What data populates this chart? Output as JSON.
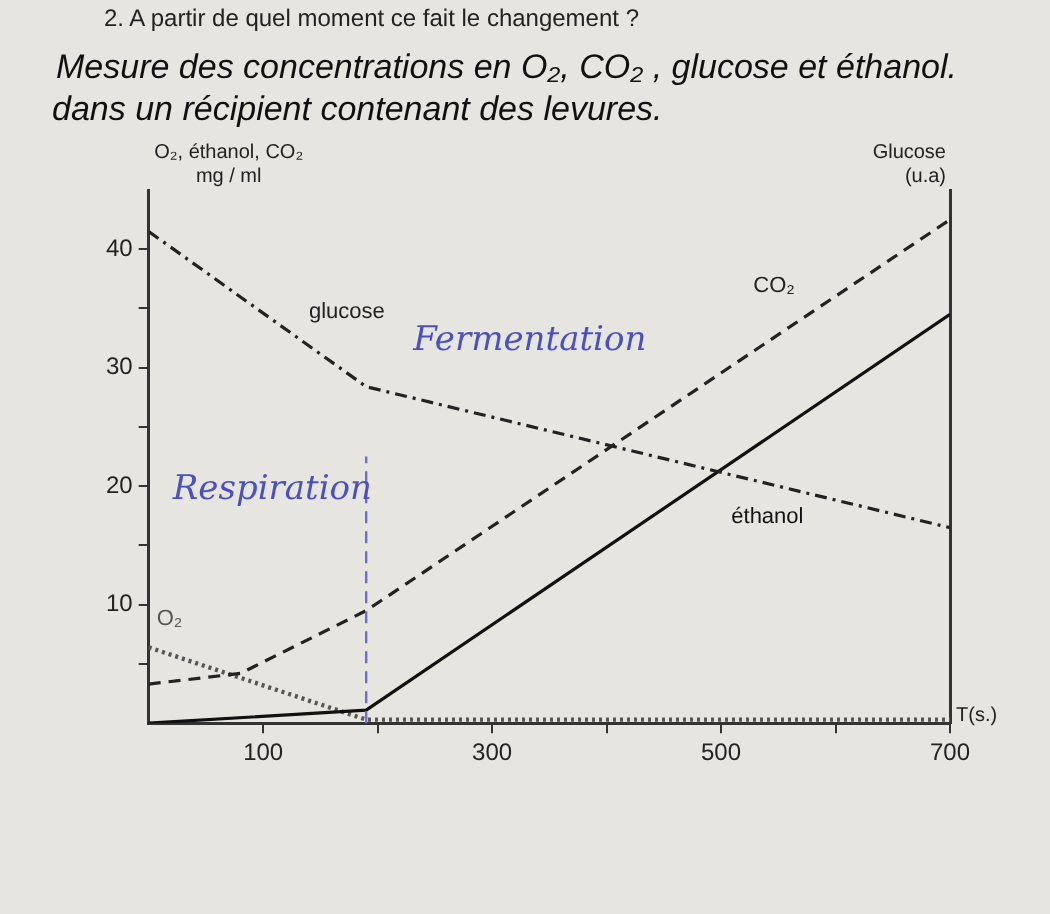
{
  "chart_data": {
    "type": "line",
    "title": "Mesure des concentrations en O₂, CO₂ , glucose et éthanol.",
    "subtitle": "dans un récipient contenant des levures.",
    "xlabel": "T(s.)",
    "ylabel": "O₂, éthanol, CO₂\nmg / ml",
    "y2label": "Glucose\n(u.a)",
    "series": [
      {
        "name": "glucose",
        "color": "#222222",
        "line_style": "dashdot",
        "x": [
          0,
          190,
          700
        ],
        "values": [
          41.5,
          28.4,
          16.5
        ]
      },
      {
        "name": "CO₂",
        "color": "#222222",
        "line_style": "dashed",
        "x": [
          0,
          80,
          190,
          700
        ],
        "values": [
          3.3,
          4.2,
          9.5,
          42.5
        ]
      },
      {
        "name": "éthanol",
        "color": "#111111",
        "line_style": "solid",
        "x": [
          0,
          190,
          700
        ],
        "values": [
          0,
          1.1,
          34.5
        ]
      },
      {
        "name": "O₂",
        "color": "#555555",
        "line_style": "dotted",
        "x": [
          0,
          190,
          700
        ],
        "values": [
          6.4,
          0.3,
          0.3
        ]
      }
    ],
    "xlim": [
      0,
      700
    ],
    "xticks": [
      100,
      {
        "value": 200,
        "label": null
      },
      300,
      {
        "value": 400,
        "label": null
      },
      500,
      {
        "value": 600,
        "label": null
      },
      700
    ],
    "ylim": [
      0,
      45
    ],
    "yticks": [
      {
        "value": 5,
        "label": null
      },
      10,
      {
        "value": 15,
        "label": null
      },
      20,
      {
        "value": 25,
        "label": null
      },
      30,
      {
        "value": 35,
        "label": null
      },
      40
    ],
    "ref_lines": [
      {
        "axis": "x",
        "value": 190,
        "color": "#6a6fd0",
        "line_style": "dashed"
      }
    ],
    "annotations": [
      "2. A partir de quel moment ce fait le changement ?",
      "Respiration",
      "Fermentation"
    ],
    "grid": false,
    "legend": false,
    "marker": "none"
  }
}
